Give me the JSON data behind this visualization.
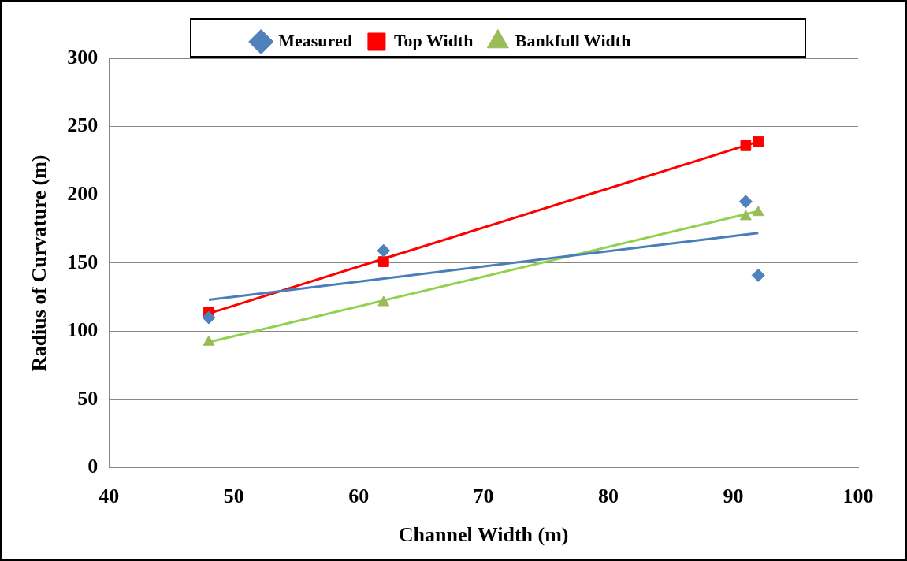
{
  "chart_data": {
    "type": "scatter",
    "xlabel": "Channel Width (m)",
    "ylabel": "Radius of Curvature (m)",
    "xlim": [
      40,
      100
    ],
    "xticks": [
      40,
      50,
      60,
      70,
      80,
      90,
      100
    ],
    "ylim": [
      0,
      300
    ],
    "yticks": [
      0,
      50,
      100,
      150,
      200,
      250,
      300
    ],
    "grid": "y",
    "legend": "top",
    "series": [
      {
        "name": "Measured",
        "color": "#4f81bd",
        "marker": "diamond",
        "x": [
          48,
          62,
          91,
          92
        ],
        "values": [
          110,
          159,
          195,
          141
        ]
      },
      {
        "name": "Top Width",
        "color": "#ff0000",
        "marker": "square",
        "x": [
          48,
          62,
          91,
          92
        ],
        "values": [
          114,
          151,
          236,
          239
        ]
      },
      {
        "name": "Bankfull Width",
        "color": "#9bbb59",
        "marker": "triangle",
        "x": [
          48,
          62,
          91,
          92
        ],
        "values": [
          92,
          121,
          184,
          187
        ]
      },
      {
        "type": "line",
        "color": "#4a7ebb",
        "marker": "none",
        "x": [
          48,
          92
        ],
        "values": [
          123,
          172
        ]
      },
      {
        "type": "line",
        "color": "#ff0000",
        "marker": "none",
        "x": [
          48,
          92
        ],
        "values": [
          113,
          239
        ]
      },
      {
        "type": "line",
        "color": "#92d050",
        "marker": "none",
        "x": [
          48,
          92
        ],
        "values": [
          92,
          188
        ]
      }
    ]
  }
}
